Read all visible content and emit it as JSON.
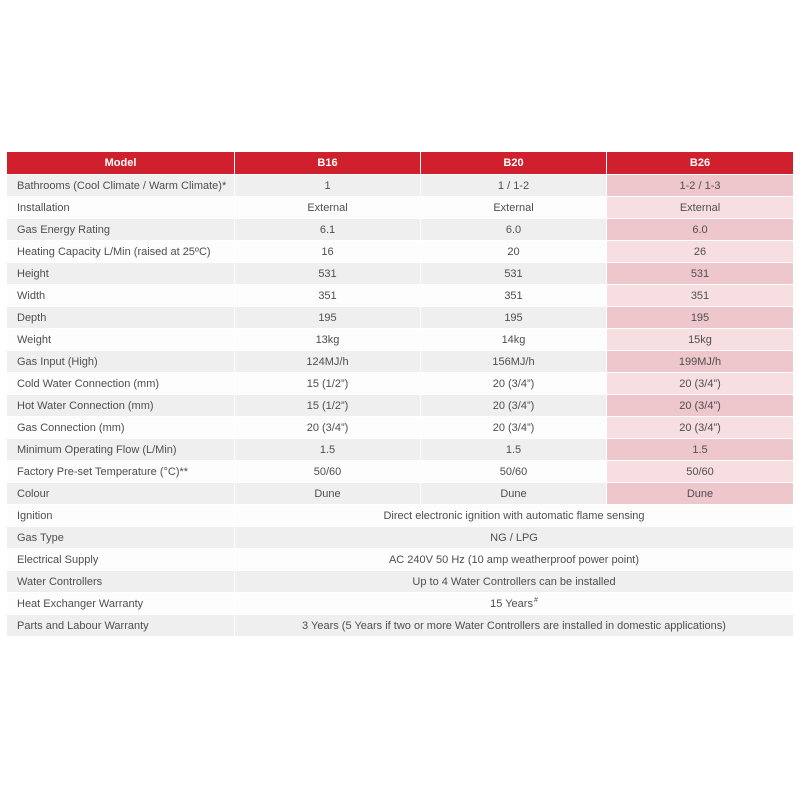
{
  "colors": {
    "header_red": "#d0202e",
    "header_text": "#ffffff",
    "row_gray": "#f0eff0",
    "row_white": "#fdfdfd",
    "highlight_pink_dark": "#eec7cd",
    "highlight_pink_light": "#f6dee1",
    "body_text": "#4e4e50"
  },
  "table": {
    "columns": [
      "Model",
      "B16",
      "B20",
      "B26"
    ],
    "highlight_column": "B26",
    "spec_rows": [
      {
        "label": "Bathrooms (Cool Climate / Warm Climate)*",
        "values": [
          "1",
          "1 / 1-2",
          "1-2 / 1-3"
        ]
      },
      {
        "label": "Installation",
        "values": [
          "External",
          "External",
          "External"
        ]
      },
      {
        "label": "Gas Energy Rating",
        "values": [
          "6.1",
          "6.0",
          "6.0"
        ]
      },
      {
        "label": "Heating Capacity L/Min (raised at 25ºC)",
        "values": [
          "16",
          "20",
          "26"
        ]
      },
      {
        "label": "Height",
        "values": [
          "531",
          "531",
          "531"
        ]
      },
      {
        "label": "Width",
        "values": [
          "351",
          "351",
          "351"
        ]
      },
      {
        "label": "Depth",
        "values": [
          "195",
          "195",
          "195"
        ]
      },
      {
        "label": "Weight",
        "values": [
          "13kg",
          "14kg",
          "15kg"
        ]
      },
      {
        "label": "Gas Input (High)",
        "values": [
          "124MJ/h",
          "156MJ/h",
          "199MJ/h"
        ]
      },
      {
        "label": "Cold Water Connection (mm)",
        "values": [
          "15 (1/2”)",
          "20 (3/4”)",
          "20 (3/4”)"
        ]
      },
      {
        "label": "Hot Water Connection (mm)",
        "values": [
          "15 (1/2”)",
          "20 (3/4”)",
          "20 (3/4”)"
        ]
      },
      {
        "label": "Gas Connection (mm)",
        "values": [
          "20 (3/4”)",
          "20 (3/4”)",
          "20 (3/4”)"
        ]
      },
      {
        "label": "Minimum Operating Flow (L/Min)",
        "values": [
          "1.5",
          "1.5",
          "1.5"
        ]
      },
      {
        "label": "Factory Pre-set Temperature (°C)**",
        "values": [
          "50/60",
          "50/60",
          "50/60"
        ]
      },
      {
        "label": "Colour",
        "values": [
          "Dune",
          "Dune",
          "Dune"
        ]
      }
    ],
    "span_rows": [
      {
        "label": "Ignition",
        "value": "Direct electronic ignition with automatic flame sensing"
      },
      {
        "label": "Gas Type",
        "value": "NG / LPG"
      },
      {
        "label": "Electrical Supply",
        "value": "AC 240V 50 Hz (10 amp weatherproof power point)"
      },
      {
        "label": "Water Controllers",
        "value": "Up to 4 Water Controllers can be installed"
      },
      {
        "label": "Heat Exchanger Warranty",
        "value": "15 Years",
        "value_sup": "#"
      },
      {
        "label": "Parts and Labour Warranty",
        "value": "3 Years (5 Years if two or more Water Controllers are installed in domestic applications)"
      }
    ]
  }
}
